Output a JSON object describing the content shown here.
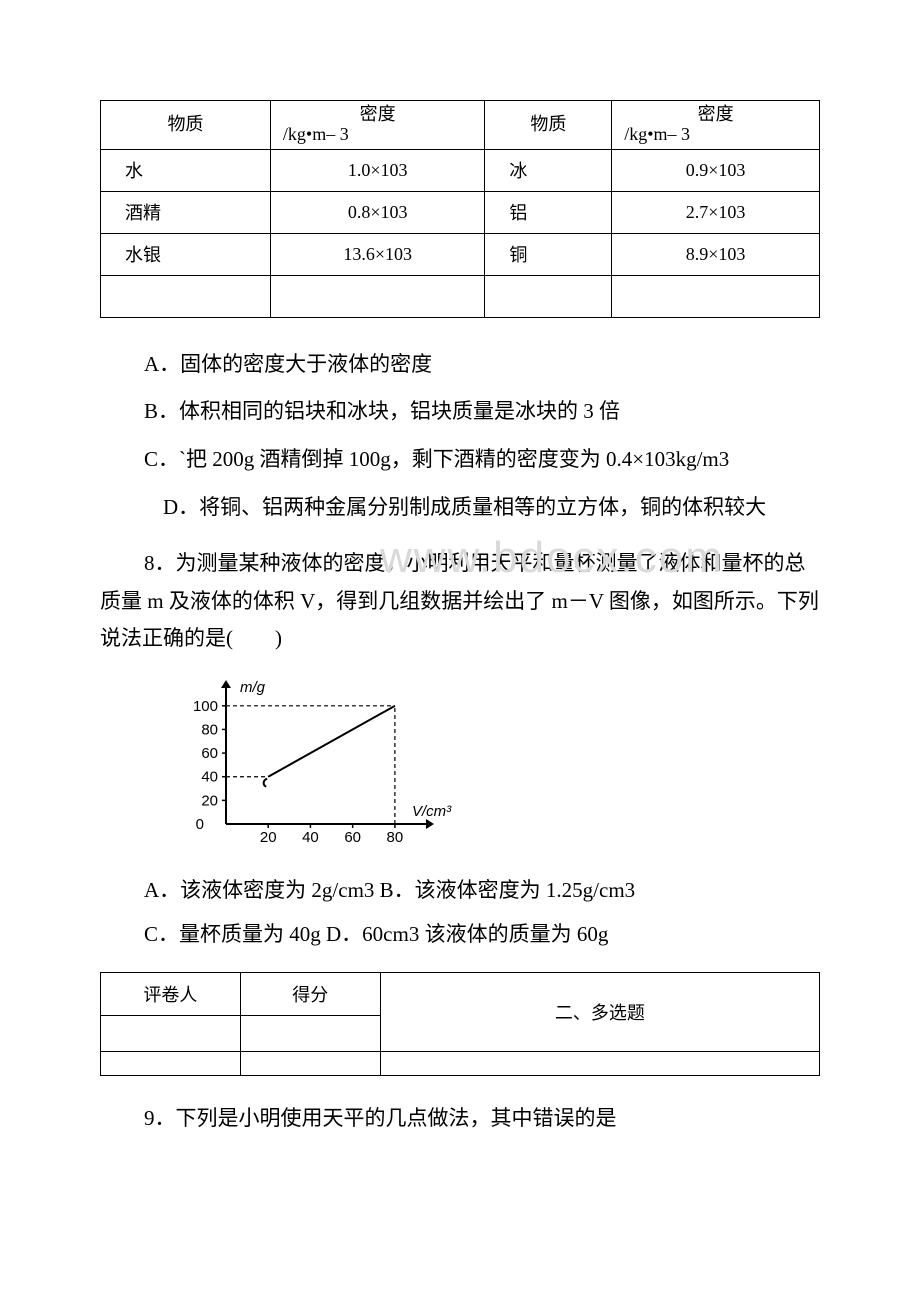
{
  "density_table": {
    "header": {
      "substance": "物质",
      "density_l1": "密度",
      "density_l2": "/kg•m– 3"
    },
    "rows": [
      {
        "s1": "水",
        "d1": "1.0×103",
        "s2": "冰",
        "d2": "0.9×103"
      },
      {
        "s1": "酒精",
        "d1": "0.8×103",
        "s2": "铝",
        "d2": "2.7×103"
      },
      {
        "s1": "水银",
        "d1": "13.6×103",
        "s2": "铜",
        "d2": "8.9×103"
      }
    ]
  },
  "options_7": {
    "A": "A．固体的密度大于液体的密度",
    "B": "B．体积相同的铝块和冰块，铝块质量是冰块的 3 倍",
    "C": "C．`把 200g 酒精倒掉 100g，剩下酒精的密度变为 0.4×103kg/m3",
    "D": "D．将铜、铝两种金属分别制成质量相等的立方体，铜的体积较大"
  },
  "q8_text": "8．为测量某种液体的密度，小明利用天平和量杯测量了液体和量杯的总质量 m 及液体的体积 V，得到几组数据并绘出了 m－V 图像，如图所示。下列说法正确的是(　　)",
  "watermark": "www.bdocx.com",
  "chart": {
    "type": "line",
    "x_label": "V/cm³",
    "y_label": "m/g",
    "x_ticks": [
      20,
      40,
      60,
      80
    ],
    "y_ticks": [
      20,
      40,
      60,
      80,
      100
    ],
    "x_range": [
      0,
      90
    ],
    "y_range": [
      0,
      110
    ],
    "line_points": [
      [
        20,
        40
      ],
      [
        80,
        100
      ]
    ],
    "dashed_refs": [
      {
        "from_y_axis": 40,
        "to_x": 20
      },
      {
        "from_y_axis": 100,
        "to_x": 80
      },
      {
        "from_x_axis": 80,
        "to_y": 100
      }
    ],
    "colors": {
      "axis": "#000000",
      "line": "#000000",
      "dash": "#000000",
      "text": "#000000",
      "bg": "#ffffff"
    },
    "label_fontsize": 15,
    "tick_fontsize": 15,
    "line_width": 2
  },
  "options_8": {
    "line1": "A．该液体密度为 2g/cm3 B．该液体密度为 1.25g/cm3",
    "line2": "C．量杯质量为 40g D．60cm3 该液体的质量为 60g"
  },
  "section2": {
    "col1": "评卷人",
    "col2": "得分",
    "title": "二、多选题"
  },
  "q9_text": "9．下列是小明使用天平的几点做法，其中错误的是"
}
